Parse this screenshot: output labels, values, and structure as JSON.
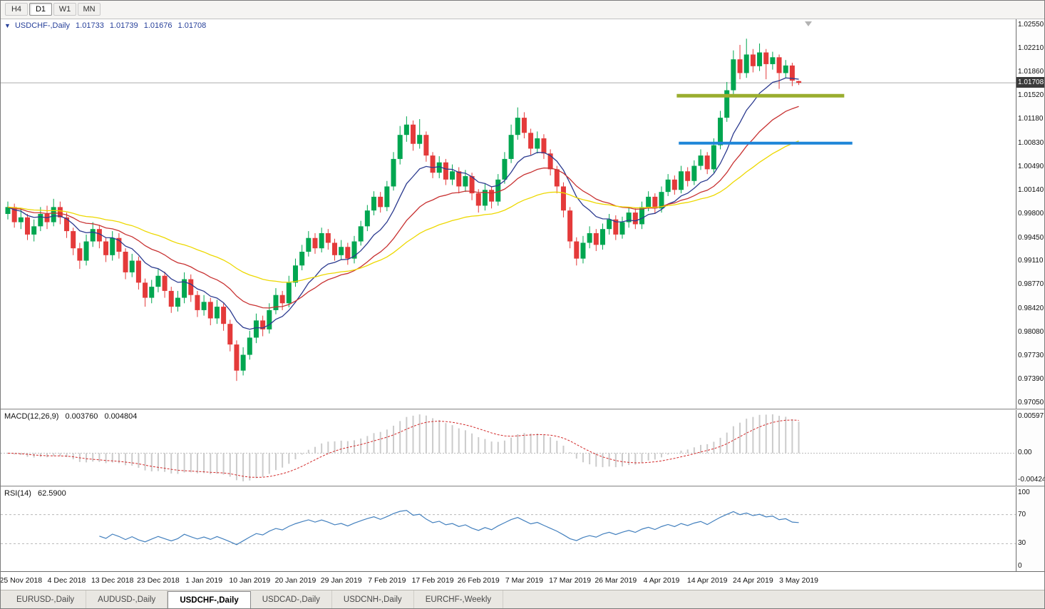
{
  "toolbar": {
    "timeframes": [
      {
        "label": "H4",
        "active": false
      },
      {
        "label": "D1",
        "active": true
      },
      {
        "label": "W1",
        "active": false
      },
      {
        "label": "MN",
        "active": false
      }
    ]
  },
  "tabbar": {
    "tabs": [
      {
        "label": "EURUSD-,Daily",
        "active": false
      },
      {
        "label": "AUDUSD-,Daily",
        "active": false
      },
      {
        "label": "USDCHF-,Daily",
        "active": true
      },
      {
        "label": "USDCAD-,Daily",
        "active": false
      },
      {
        "label": "USDCNH-,Daily",
        "active": false
      },
      {
        "label": "EURCHF-,Weekly",
        "active": false
      }
    ]
  },
  "chart_data": {
    "type": "candlestick",
    "title": {
      "symbol": "USDCHF-,Daily",
      "open": "1.01733",
      "high": "1.01739",
      "low": "1.01676",
      "close": "1.01708"
    },
    "price_badge": "1.01708",
    "current_price": 1.01708,
    "y_axis": {
      "min": 0.9705,
      "max": 1.0255,
      "tick_labels": [
        "1.02550",
        "1.02210",
        "1.01860",
        "1.01520",
        "1.01180",
        "1.00830",
        "1.00490",
        "1.00140",
        "0.99800",
        "0.99450",
        "0.99110",
        "0.98770",
        "0.98420",
        "0.98080",
        "0.97730",
        "0.97390",
        "0.97050"
      ]
    },
    "x_axis": {
      "tick_labels": [
        "25 Nov 2018",
        "4 Dec 2018",
        "13 Dec 2018",
        "23 Dec 2018",
        "1 Jan 2019",
        "10 Jan 2019",
        "20 Jan 2019",
        "29 Jan 2019",
        "7 Feb 2019",
        "17 Feb 2019",
        "26 Feb 2019",
        "7 Mar 2019",
        "17 Mar 2019",
        "26 Mar 2019",
        "4 Apr 2019",
        "14 Apr 2019",
        "24 Apr 2019",
        "3 May 2019"
      ],
      "tick_indices": [
        2,
        9,
        16,
        23,
        30,
        37,
        44,
        51,
        58,
        65,
        72,
        79,
        86,
        93,
        100,
        107,
        114,
        121
      ]
    },
    "colors": {
      "up": "#00A650",
      "down": "#E43A3A",
      "price_line": "#ABABAB",
      "badge_bg": "#3A3A3A"
    },
    "candles": [
      [
        0.998,
        0.9998,
        0.9972,
        0.999
      ],
      [
        0.999,
        0.9995,
        0.996,
        0.9968
      ],
      [
        0.9968,
        0.9988,
        0.9958,
        0.9975
      ],
      [
        0.9975,
        0.998,
        0.9942,
        0.995
      ],
      [
        0.995,
        0.9972,
        0.994,
        0.9962
      ],
      [
        0.9962,
        0.999,
        0.9955,
        0.998
      ],
      [
        0.998,
        0.9992,
        0.9958,
        0.9968
      ],
      [
        0.9968,
        1.0002,
        0.9962,
        0.999
      ],
      [
        0.999,
        0.9998,
        0.9965,
        0.9975
      ],
      [
        0.9975,
        0.9982,
        0.9945,
        0.9955
      ],
      [
        0.9955,
        0.996,
        0.992,
        0.993
      ],
      [
        0.993,
        0.9938,
        0.99,
        0.9912
      ],
      [
        0.9912,
        0.995,
        0.9905,
        0.994
      ],
      [
        0.994,
        0.9968,
        0.9932,
        0.9958
      ],
      [
        0.9958,
        0.9964,
        0.993,
        0.994
      ],
      [
        0.994,
        0.9946,
        0.991,
        0.992
      ],
      [
        0.992,
        0.9955,
        0.9912,
        0.9945
      ],
      [
        0.9945,
        0.9952,
        0.9915,
        0.9925
      ],
      [
        0.9925,
        0.993,
        0.9885,
        0.9895
      ],
      [
        0.9895,
        0.9922,
        0.9888,
        0.9912
      ],
      [
        0.9912,
        0.9918,
        0.987,
        0.988
      ],
      [
        0.988,
        0.9886,
        0.9845,
        0.9858
      ],
      [
        0.9858,
        0.9884,
        0.985,
        0.9874
      ],
      [
        0.9874,
        0.99,
        0.9866,
        0.989
      ],
      [
        0.989,
        0.9896,
        0.9858,
        0.9868
      ],
      [
        0.9868,
        0.9874,
        0.9836,
        0.9845
      ],
      [
        0.9845,
        0.9868,
        0.9838,
        0.9858
      ],
      [
        0.9858,
        0.9895,
        0.985,
        0.9885
      ],
      [
        0.9885,
        0.9892,
        0.9852,
        0.9862
      ],
      [
        0.9862,
        0.9868,
        0.983,
        0.984
      ],
      [
        0.984,
        0.9862,
        0.9832,
        0.9852
      ],
      [
        0.9852,
        0.9858,
        0.9818,
        0.9828
      ],
      [
        0.9828,
        0.9855,
        0.982,
        0.9845
      ],
      [
        0.9845,
        0.985,
        0.981,
        0.982
      ],
      [
        0.982,
        0.9826,
        0.978,
        0.979
      ],
      [
        0.979,
        0.9796,
        0.9737,
        0.9752
      ],
      [
        0.9752,
        0.9786,
        0.9745,
        0.9775
      ],
      [
        0.9775,
        0.981,
        0.9768,
        0.98
      ],
      [
        0.98,
        0.9835,
        0.9792,
        0.9825
      ],
      [
        0.9825,
        0.9832,
        0.9802,
        0.9812
      ],
      [
        0.9812,
        0.985,
        0.9806,
        0.984
      ],
      [
        0.984,
        0.9872,
        0.9834,
        0.9862
      ],
      [
        0.9862,
        0.9868,
        0.984,
        0.985
      ],
      [
        0.985,
        0.989,
        0.9844,
        0.988
      ],
      [
        0.988,
        0.9915,
        0.9874,
        0.9905
      ],
      [
        0.9905,
        0.9935,
        0.9898,
        0.9925
      ],
      [
        0.9925,
        0.9955,
        0.9918,
        0.9945
      ],
      [
        0.9945,
        0.9952,
        0.9922,
        0.993
      ],
      [
        0.993,
        0.996,
        0.9924,
        0.9952
      ],
      [
        0.9952,
        0.9958,
        0.9928,
        0.9938
      ],
      [
        0.9938,
        0.9944,
        0.9912,
        0.992
      ],
      [
        0.992,
        0.9942,
        0.9914,
        0.9932
      ],
      [
        0.9932,
        0.9938,
        0.9906,
        0.9915
      ],
      [
        0.9915,
        0.9948,
        0.9908,
        0.994
      ],
      [
        0.994,
        0.997,
        0.9934,
        0.9962
      ],
      [
        0.9962,
        0.9993,
        0.9955,
        0.9985
      ],
      [
        0.9985,
        1.0013,
        0.9978,
        1.0005
      ],
      [
        1.0005,
        1.0012,
        0.9982,
        0.999
      ],
      [
        0.999,
        1.0028,
        0.9984,
        1.002
      ],
      [
        1.002,
        1.007,
        1.0014,
        1.006
      ],
      [
        1.006,
        1.0108,
        1.0052,
        1.0095
      ],
      [
        1.0095,
        1.0122,
        1.0085,
        1.011
      ],
      [
        1.011,
        1.0116,
        1.0072,
        1.0082
      ],
      [
        1.0082,
        1.0118,
        1.0075,
        1.0095
      ],
      [
        1.0095,
        1.01,
        1.0056,
        1.0065
      ],
      [
        1.0065,
        1.007,
        1.0032,
        1.004
      ],
      [
        1.004,
        1.0064,
        1.0032,
        1.0055
      ],
      [
        1.0055,
        1.006,
        1.0022,
        1.003
      ],
      [
        1.003,
        1.0052,
        1.0022,
        1.0042
      ],
      [
        1.0042,
        1.0048,
        1.001,
        1.002
      ],
      [
        1.002,
        1.0044,
        1.0012,
        1.0035
      ],
      [
        1.0035,
        1.004,
        1.0,
        1.001
      ],
      [
        1.001,
        1.0016,
        0.9982,
        0.9992
      ],
      [
        0.9992,
        1.0024,
        0.9985,
        1.0015
      ],
      [
        1.0015,
        1.002,
        0.9988,
        0.9998
      ],
      [
        0.9998,
        1.0038,
        0.9992,
        1.003
      ],
      [
        1.003,
        1.007,
        1.0024,
        1.006
      ],
      [
        1.006,
        1.011,
        1.0054,
        1.0095
      ],
      [
        1.0095,
        1.0135,
        1.0088,
        1.012
      ],
      [
        1.012,
        1.0128,
        1.009,
        1.0098
      ],
      [
        1.0098,
        1.0104,
        1.0066,
        1.0075
      ],
      [
        1.0075,
        1.01,
        1.0068,
        1.009
      ],
      [
        1.009,
        1.0096,
        1.006,
        1.0068
      ],
      [
        1.0068,
        1.0074,
        1.0036,
        1.0045
      ],
      [
        1.0045,
        1.005,
        1.001,
        1.002
      ],
      [
        1.002,
        1.0026,
        0.9975,
        0.9985
      ],
      [
        0.9985,
        0.999,
        0.993,
        0.994
      ],
      [
        0.994,
        0.9946,
        0.9905,
        0.9915
      ],
      [
        0.9915,
        0.9948,
        0.9908,
        0.9938
      ],
      [
        0.9938,
        0.9962,
        0.993,
        0.9952
      ],
      [
        0.9952,
        0.9958,
        0.9926,
        0.9935
      ],
      [
        0.9935,
        0.9966,
        0.9928,
        0.9958
      ],
      [
        0.9958,
        0.998,
        0.995,
        0.9972
      ],
      [
        0.9972,
        0.9978,
        0.9942,
        0.995
      ],
      [
        0.995,
        0.9976,
        0.9944,
        0.9968
      ],
      [
        0.9968,
        0.999,
        0.996,
        0.9982
      ],
      [
        0.9982,
        0.9988,
        0.9958,
        0.9965
      ],
      [
        0.9965,
        0.9998,
        0.9958,
        0.999
      ],
      [
        0.999,
        1.0013,
        0.9984,
        1.0005
      ],
      [
        1.0005,
        1.001,
        0.998,
        0.9988
      ],
      [
        0.9988,
        1.002,
        0.9982,
        1.0012
      ],
      [
        1.0012,
        1.0038,
        1.0006,
        1.003
      ],
      [
        1.003,
        1.0036,
        1.0008,
        1.0015
      ],
      [
        1.0015,
        1.005,
        1.001,
        1.0042
      ],
      [
        1.0042,
        1.0048,
        1.002,
        1.0028
      ],
      [
        1.0028,
        1.0058,
        1.0022,
        1.005
      ],
      [
        1.005,
        1.0074,
        1.0044,
        1.0065
      ],
      [
        1.0065,
        1.007,
        1.0038,
        1.0045
      ],
      [
        1.0045,
        1.009,
        1.004,
        1.008
      ],
      [
        1.008,
        1.013,
        1.0074,
        1.012
      ],
      [
        1.012,
        1.0172,
        1.0114,
        1.016
      ],
      [
        1.016,
        1.0218,
        1.0154,
        1.0205
      ],
      [
        1.0205,
        1.0226,
        1.0176,
        1.0185
      ],
      [
        1.0185,
        1.0235,
        1.0178,
        1.0212
      ],
      [
        1.0212,
        1.022,
        1.0186,
        1.0195
      ],
      [
        1.0195,
        1.0228,
        1.0188,
        1.0215
      ],
      [
        1.0215,
        1.022,
        1.0176,
        1.0198
      ],
      [
        1.0198,
        1.0216,
        1.019,
        1.0208
      ],
      [
        1.0208,
        1.0212,
        1.0162,
        1.0185
      ],
      [
        1.0185,
        1.0204,
        1.0178,
        1.0196
      ],
      [
        1.0196,
        1.02,
        1.0166,
        1.0174
      ],
      [
        1.01733,
        1.01739,
        1.01676,
        1.01708
      ]
    ],
    "moving_averages": [
      {
        "name": "ma-fast",
        "period": 10,
        "color": "#2B3A8F"
      },
      {
        "name": "ma-mid",
        "period": 22,
        "color": "#C83232"
      },
      {
        "name": "ma-slow",
        "period": 45,
        "color": "#EDD800"
      }
    ],
    "overlay_lines": [
      {
        "name": "resistance-line",
        "price": 1.0152,
        "x1": 0.666,
        "x2": 0.831,
        "color": "#9AAD2F",
        "width": 5
      },
      {
        "name": "support-line",
        "price": 1.0083,
        "x1": 0.668,
        "x2": 0.839,
        "color": "#1E86D8",
        "width": 4
      }
    ],
    "indicators": {
      "macd": {
        "label": "MACD(12,26,9)",
        "value_main": "0.003760",
        "value_signal": "0.004804",
        "fast": 12,
        "slow": 26,
        "signal": 9,
        "axis_top": "0.00597",
        "axis_zero": "0.00",
        "axis_bottom": "-0.004243",
        "histogram_color": "#CBCBCB",
        "signal_color": "#D22A2A"
      },
      "rsi": {
        "label": "RSI(14)",
        "value": "62.5900",
        "period": 14,
        "levels": [
          70,
          30
        ],
        "axis_labels": [
          "100",
          "70",
          "30",
          "0"
        ],
        "line_color": "#4380BE"
      }
    }
  }
}
